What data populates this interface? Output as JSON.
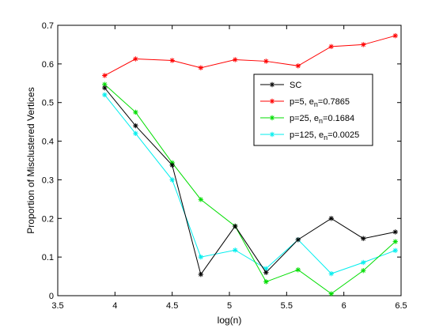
{
  "chart_data": {
    "type": "line",
    "xlabel": "log(n)",
    "ylabel": "Proportion of Misclustered Vertices",
    "xlim": [
      3.5,
      6.5
    ],
    "ylim": [
      0,
      0.7
    ],
    "xticks": [
      3.5,
      4,
      4.5,
      5,
      5.5,
      6,
      6.5
    ],
    "yticks": [
      0,
      0.1,
      0.2,
      0.3,
      0.4,
      0.5,
      0.6,
      0.7
    ],
    "xtick_labels": [
      "3.5",
      "4",
      "4.5",
      "5",
      "5.5",
      "6",
      "6.5"
    ],
    "ytick_labels": [
      "0",
      "0.1",
      "0.2",
      "0.3",
      "0.4",
      "0.5",
      "0.6",
      "0.7"
    ],
    "grid": false,
    "legend_position": "upper-right",
    "x": [
      3.91,
      4.18,
      4.5,
      4.75,
      5.05,
      5.32,
      5.6,
      5.89,
      6.17,
      6.45
    ],
    "series": [
      {
        "name": "SC",
        "legend_main": "SC",
        "legend_sub": "",
        "legend_tail": "",
        "color": "#000000",
        "marker": "star",
        "values": [
          0.538,
          0.44,
          0.338,
          0.055,
          0.18,
          0.06,
          0.145,
          0.2,
          0.148,
          0.165
        ]
      },
      {
        "name": "p=5, e_n=0.7865",
        "legend_main": "p=5, e",
        "legend_sub": "n",
        "legend_tail": "=0.7865",
        "color": "#ff0000",
        "marker": "star",
        "values": [
          0.57,
          0.613,
          0.609,
          0.59,
          0.611,
          0.607,
          0.595,
          0.645,
          0.65,
          0.673
        ]
      },
      {
        "name": "p=25, e_n=0.1684",
        "legend_main": "p=25, e",
        "legend_sub": "n",
        "legend_tail": "=0.1684",
        "color": "#00dd00",
        "marker": "star",
        "values": [
          0.547,
          0.475,
          0.344,
          0.249,
          0.18,
          0.036,
          0.067,
          0.005,
          0.065,
          0.14
        ]
      },
      {
        "name": "p=125, e_n=0.0025",
        "legend_main": "p=125, e",
        "legend_sub": "n",
        "legend_tail": "=0.0025",
        "color": "#00eeee",
        "marker": "star",
        "values": [
          0.52,
          0.42,
          0.3,
          0.1,
          0.118,
          0.07,
          0.145,
          0.057,
          0.086,
          0.117
        ]
      }
    ]
  }
}
